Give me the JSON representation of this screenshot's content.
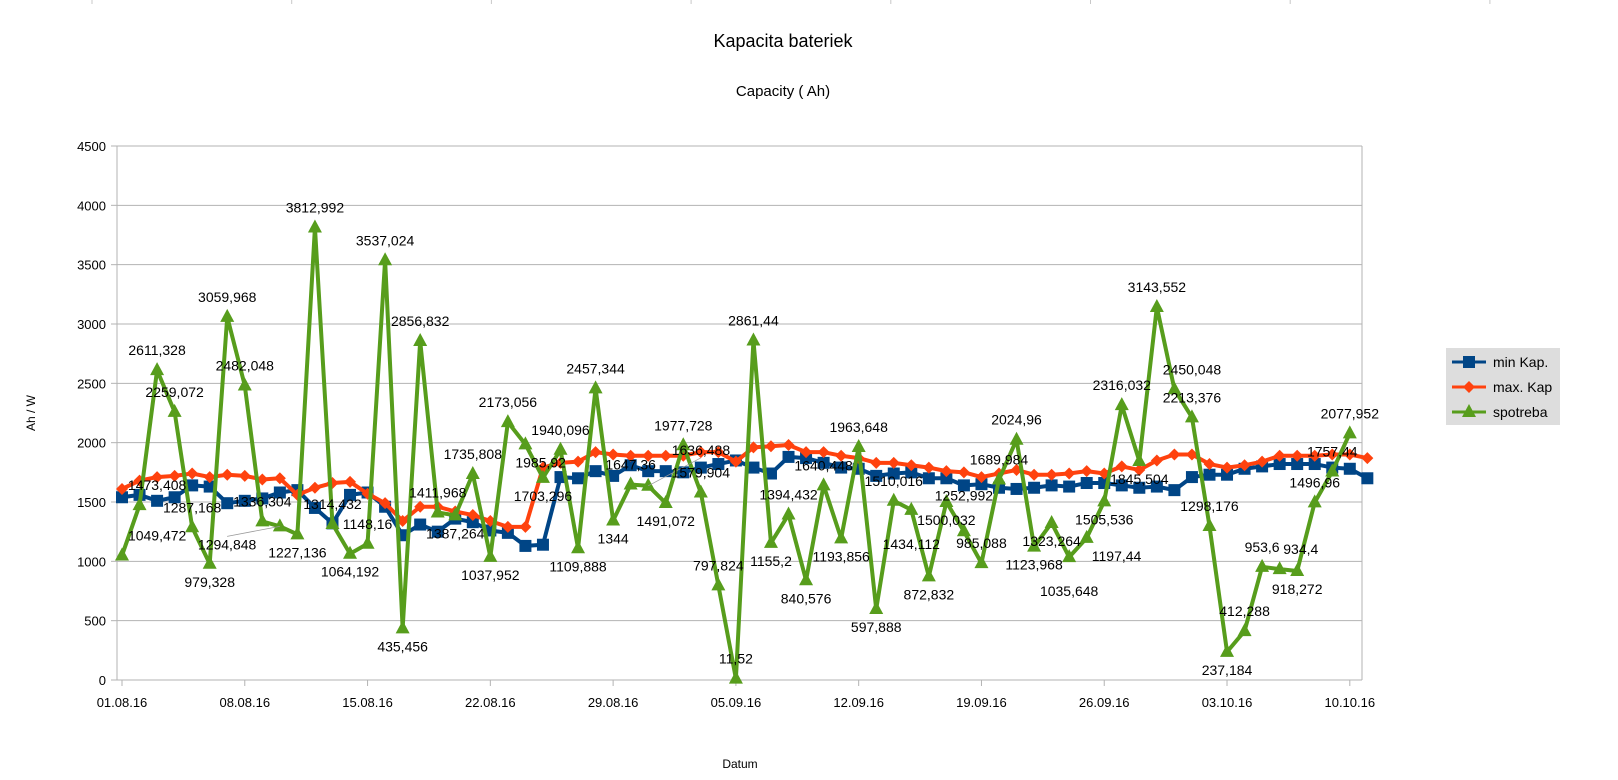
{
  "chart_data": {
    "type": "line",
    "title": "Kapacita bateriek",
    "subtitle": "Capacity ( Ah)",
    "xlabel": "Datum",
    "ylabel": "Ah / W",
    "ylim": [
      0,
      4500
    ],
    "yticks": [
      0,
      500,
      1000,
      1500,
      2000,
      2500,
      3000,
      3500,
      4000,
      4500
    ],
    "xtick_labels": [
      "01.08.16",
      "08.08.16",
      "15.08.16",
      "22.08.16",
      "29.08.16",
      "05.09.16",
      "12.09.16",
      "19.09.16",
      "26.09.16",
      "03.10.16",
      "10.10.16"
    ],
    "x_start": "01.08.16",
    "x_days": 71,
    "grid": true,
    "legend_position": "right",
    "series": [
      {
        "name": "min Kap.",
        "color": "#004586",
        "marker": "square",
        "values": [
          1540,
          1560,
          1510,
          1540,
          1640,
          1630,
          1490,
          1510,
          1530,
          1580,
          1600,
          1450,
          1320,
          1560,
          1580,
          1460,
          1220,
          1310,
          1250,
          1360,
          1330,
          1260,
          1240,
          1130,
          1140,
          1710,
          1700,
          1760,
          1720,
          1810,
          1760,
          1760,
          1750,
          1790,
          1820,
          1850,
          1790,
          1740,
          1880,
          1870,
          1830,
          1790,
          1780,
          1720,
          1740,
          1750,
          1700,
          1700,
          1640,
          1650,
          1620,
          1610,
          1620,
          1640,
          1630,
          1660,
          1660,
          1640,
          1620,
          1630,
          1600,
          1710,
          1730,
          1730,
          1780,
          1800,
          1820,
          1820,
          1820,
          1790,
          1780,
          1700
        ]
      },
      {
        "name": "max. Kap",
        "color": "#ff420e",
        "marker": "diamond",
        "values": [
          1610,
          1680,
          1710,
          1720,
          1740,
          1710,
          1730,
          1720,
          1690,
          1700,
          1560,
          1620,
          1660,
          1670,
          1570,
          1490,
          1340,
          1460,
          1460,
          1420,
          1390,
          1340,
          1290,
          1290,
          1790,
          1830,
          1840,
          1920,
          1900,
          1890,
          1890,
          1890,
          1890,
          1920,
          1920,
          1840,
          1960,
          1970,
          1980,
          1920,
          1920,
          1890,
          1870,
          1830,
          1830,
          1810,
          1790,
          1760,
          1750,
          1710,
          1740,
          1770,
          1730,
          1730,
          1740,
          1760,
          1740,
          1800,
          1770,
          1850,
          1900,
          1900,
          1820,
          1790,
          1810,
          1840,
          1890,
          1890,
          1890,
          1900,
          1900,
          1870
        ]
      },
      {
        "name": "spotreba",
        "color": "#579d1c",
        "marker": "triangle",
        "values": [
          1049.472,
          1473.408,
          2611.328,
          2259.072,
          1287.168,
          979.328,
          3059.968,
          2482.048,
          1336.304,
          1294.848,
          1227.136,
          3812.992,
          1314.432,
          1064.192,
          1148.16,
          3537.024,
          435.456,
          2856.832,
          1411.968,
          1387.264,
          1735.808,
          1037.952,
          2173.056,
          1985.92,
          1703.296,
          1940.096,
          1109.888,
          2457.344,
          1344,
          1647.36,
          1636.488,
          1491.072,
          1977.728,
          1579.904,
          797.824,
          11.52,
          2861.44,
          1155.2,
          1394.432,
          840.576,
          1640.448,
          1193.856,
          1963.648,
          597.888,
          1510.016,
          1434.112,
          872.832,
          1500.032,
          1252.992,
          985.088,
          1689.984,
          2024.96,
          1123.968,
          1323.264,
          1035.648,
          1197.44,
          1505.536,
          2316.032,
          1845.504,
          3143.552,
          2450.048,
          2213.376,
          1298.176,
          237.184,
          412.288,
          953.6,
          934.4,
          918.272,
          1496.96,
          1757.44,
          2077.952
        ],
        "labels": [
          "1049,472",
          "1473,408",
          "2611,328",
          "2259,072",
          "1287,168",
          "979,328",
          "3059,968",
          "2482,048",
          "1336,304",
          "1294,848",
          "1227,136",
          "3812,992",
          "1314,432",
          "1064,192",
          "1148,16",
          "3537,024",
          "435,456",
          "2856,832",
          "1411,968",
          "1387,264",
          "1735,808",
          "1037,952",
          "2173,056",
          "1985,92",
          "1703,296",
          "1940,096",
          "1109,888",
          "2457,344",
          "1344",
          "1647,36",
          "1636,488",
          "1491,072",
          "1977,728",
          "1579,904",
          "797,824",
          "11,52",
          "2861,44",
          "1155,2",
          "1394,432",
          "840,576",
          "1640,448",
          "1193,856",
          "1963,648",
          "597,888",
          "1510,016",
          "1434,112",
          "872,832",
          "1500,032",
          "1252,992",
          "985,088",
          "1689,984",
          "2024,96",
          "1123,968",
          "1323,264",
          "1035,648",
          "1197,44",
          "1505,536",
          "2316,032",
          "1845,504",
          "3143,552",
          "2450,048",
          "2213,376",
          "1298,176",
          "237,184",
          "412,288",
          "953,6",
          "934,4",
          "918,272",
          "1496,96",
          "1757,44",
          "2077,952"
        ]
      }
    ]
  }
}
